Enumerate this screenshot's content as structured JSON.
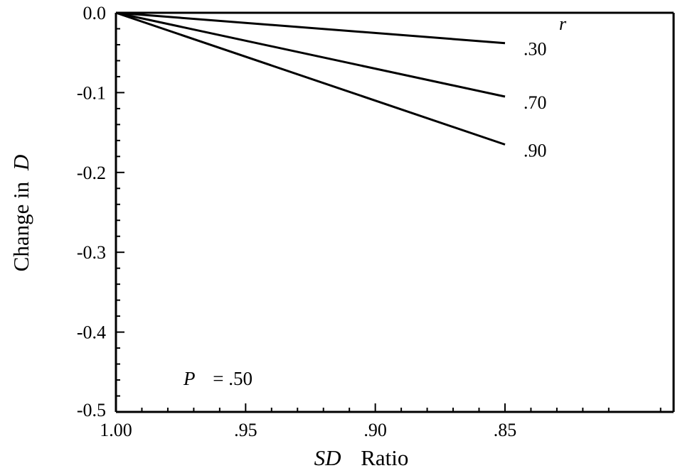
{
  "chart_data": {
    "type": "line",
    "xlabel_italic": "SD",
    "xlabel_rest": "Ratio",
    "ylabel_prefix": "Change in",
    "ylabel_italic": "D",
    "xlim": [
      1.0,
      0.785
    ],
    "ylim": [
      -0.5,
      0.0
    ],
    "x_ticks": [
      1.0,
      0.95,
      0.9,
      0.85
    ],
    "x_tick_labels": [
      "1.00",
      ".95",
      ".90",
      ".85"
    ],
    "y_ticks": [
      0.0,
      -0.1,
      -0.2,
      -0.3,
      -0.4,
      -0.5
    ],
    "y_tick_labels": [
      "0.0",
      "-0.1",
      "-0.2",
      "-0.3",
      "-0.4",
      "-0.5"
    ],
    "legend_title": "r",
    "series": [
      {
        "name": ".30",
        "x": [
          1.0,
          0.85
        ],
        "y": [
          0.0,
          -0.038
        ]
      },
      {
        "name": ".70",
        "x": [
          1.0,
          0.85
        ],
        "y": [
          0.0,
          -0.105
        ]
      },
      {
        "name": ".90",
        "x": [
          1.0,
          0.85
        ],
        "y": [
          0.0,
          -0.165
        ]
      }
    ],
    "annotation_italic": "P",
    "annotation_rest": "= .50",
    "grid": false
  }
}
